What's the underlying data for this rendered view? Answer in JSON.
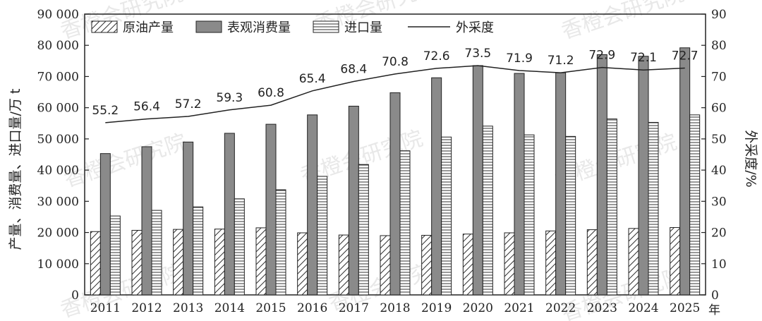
{
  "chart_data": {
    "type": "bar",
    "categories": [
      "2011",
      "2012",
      "2013",
      "2014",
      "2015",
      "2016",
      "2017",
      "2018",
      "2019",
      "2020",
      "2021",
      "2022",
      "2023",
      "2024",
      "2025"
    ],
    "x_unit": "年",
    "ylabel_left": "产量、消费量、进口量/万 t",
    "ylabel_right": "外采度/%",
    "ylim_left": [
      0,
      90000
    ],
    "ylim_right": [
      0,
      90
    ],
    "left_ticks": [
      "0",
      "10 000",
      "20 000",
      "30 000",
      "40 000",
      "50 000",
      "60 000",
      "70 000",
      "80 000",
      "90 000"
    ],
    "right_ticks": [
      "0",
      "10",
      "20",
      "30",
      "40",
      "50",
      "60",
      "70",
      "80",
      "90"
    ],
    "series": [
      {
        "name": "原油产量",
        "kind": "bar",
        "pattern": "diagonal",
        "values": [
          20300,
          20700,
          21000,
          21100,
          21500,
          19900,
          19200,
          19000,
          19100,
          19500,
          19900,
          20500,
          20900,
          21300,
          21600
        ]
      },
      {
        "name": "表观消费量",
        "kind": "bar",
        "pattern": "solid-gray",
        "values": [
          45300,
          47500,
          49000,
          51800,
          54700,
          57700,
          60500,
          64800,
          69600,
          73500,
          71000,
          71200,
          77000,
          76500,
          79200
        ]
      },
      {
        "name": "进口量",
        "kind": "bar",
        "pattern": "horizontal",
        "values": [
          25300,
          27100,
          28200,
          30800,
          33700,
          38000,
          41800,
          46200,
          50600,
          54100,
          51300,
          50800,
          56400,
          55300,
          57700
        ]
      },
      {
        "name": "外采度",
        "kind": "line",
        "axis": "right",
        "values": [
          55.2,
          56.4,
          57.2,
          59.3,
          60.8,
          65.4,
          68.4,
          70.8,
          72.6,
          73.5,
          71.9,
          71.2,
          72.9,
          72.1,
          72.7
        ],
        "labels": [
          "55.2",
          "56.4",
          "57.2",
          "59.3",
          "60.8",
          "65.4",
          "68.4",
          "70.8",
          "72.6",
          "73.5",
          "71.9",
          "71.2",
          "72.9",
          "72.1",
          "72.7"
        ]
      }
    ],
    "legend_position": "top-left",
    "watermark_text": "香橙会研究院",
    "colors": {
      "bar_gray": "#8a8a8a",
      "line": "#222222",
      "axis": "#222222"
    }
  }
}
